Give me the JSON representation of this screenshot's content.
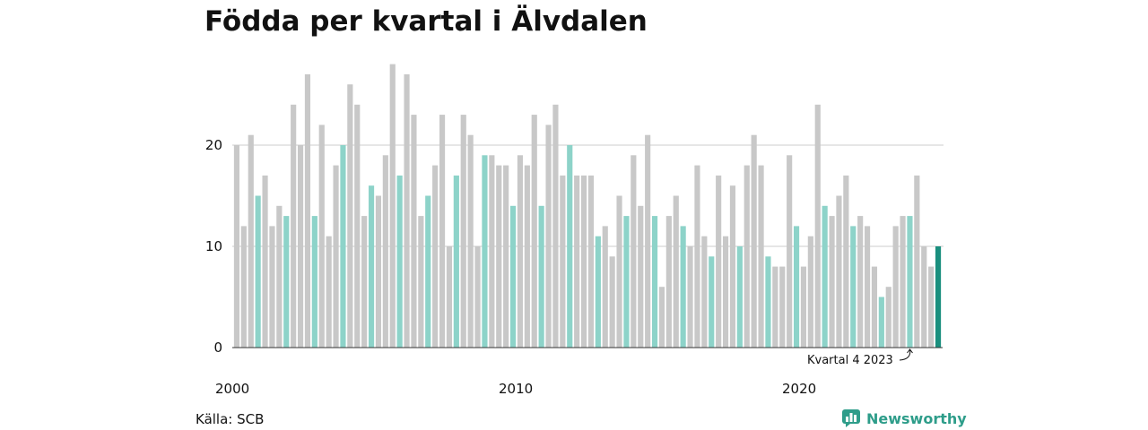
{
  "colors": {
    "bar_default": "#c8c8c8",
    "bar_highlight": "#8dd3c9",
    "bar_latest": "#1a8f7e",
    "grid": "#dddddd",
    "brand": "#2e9d8a"
  },
  "footer": {
    "source": "Källa: SCB",
    "brand": "Newsworthy",
    "brand_icon": "bar-chart-bubble-icon"
  },
  "chart_data": {
    "type": "bar",
    "title": "Födda per kvartal i Älvdalen",
    "xlabel": "",
    "ylabel": "",
    "ylim": [
      0,
      28
    ],
    "yticks": [
      0,
      10,
      20
    ],
    "grid": "horizontal",
    "highlight": "quarter 4 of each year",
    "x_tick_labels": [
      "2000",
      "2010",
      "2020"
    ],
    "annotation": "Kvartal 4 2023",
    "start_year": 2000,
    "values": [
      20,
      12,
      21,
      15,
      17,
      12,
      14,
      13,
      24,
      20,
      27,
      13,
      22,
      11,
      18,
      20,
      26,
      24,
      13,
      16,
      15,
      19,
      28,
      17,
      27,
      23,
      13,
      15,
      18,
      23,
      10,
      17,
      23,
      21,
      10,
      19,
      19,
      18,
      18,
      14,
      19,
      18,
      23,
      14,
      22,
      24,
      17,
      20,
      17,
      17,
      17,
      11,
      12,
      9,
      15,
      13,
      19,
      14,
      21,
      13,
      6,
      13,
      15,
      12,
      10,
      18,
      11,
      9,
      17,
      11,
      16,
      10,
      18,
      21,
      18,
      9,
      8,
      8,
      19,
      12,
      8,
      11,
      24,
      14,
      13,
      15,
      17,
      12,
      13,
      12,
      8,
      5,
      6,
      12,
      13,
      13,
      17,
      10,
      8,
      10
    ]
  }
}
